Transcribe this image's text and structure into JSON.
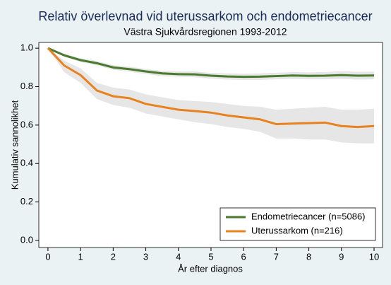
{
  "chart_data": {
    "type": "line",
    "title": "Relativ överlevnad vid uterussarkom och endometriecancer",
    "subtitle": "Västra Sjukvårdsregionen 1993-2012",
    "x_label": "År efter diagnos",
    "y_label": "Kumulativ sannolikhet",
    "x": [
      0,
      0.5,
      1,
      1.5,
      2,
      2.5,
      3,
      3.5,
      4,
      4.5,
      5,
      5.5,
      6,
      6.5,
      7,
      7.5,
      8,
      8.5,
      9,
      9.5,
      10
    ],
    "series": [
      {
        "name": "Endometriecancer (n=5086)",
        "color": "#4a7a2e",
        "values": [
          1.0,
          0.963,
          0.938,
          0.922,
          0.9,
          0.891,
          0.879,
          0.869,
          0.865,
          0.864,
          0.857,
          0.853,
          0.851,
          0.852,
          0.855,
          0.858,
          0.856,
          0.857,
          0.86,
          0.857,
          0.858
        ],
        "lower": [
          1.0,
          0.955,
          0.928,
          0.911,
          0.888,
          0.878,
          0.866,
          0.855,
          0.851,
          0.849,
          0.842,
          0.837,
          0.835,
          0.835,
          0.838,
          0.84,
          0.838,
          0.838,
          0.84,
          0.837,
          0.838
        ],
        "upper": [
          1.0,
          0.971,
          0.948,
          0.933,
          0.912,
          0.904,
          0.892,
          0.883,
          0.879,
          0.879,
          0.872,
          0.869,
          0.867,
          0.869,
          0.872,
          0.876,
          0.874,
          0.876,
          0.88,
          0.877,
          0.878
        ]
      },
      {
        "name": "Uterussarkom (n=216)",
        "color": "#e8821e",
        "values": [
          1.0,
          0.91,
          0.86,
          0.78,
          0.75,
          0.74,
          0.71,
          0.695,
          0.68,
          0.673,
          0.665,
          0.65,
          0.64,
          0.63,
          0.605,
          0.608,
          0.61,
          0.613,
          0.595,
          0.59,
          0.595
        ],
        "lower": [
          1.0,
          0.875,
          0.82,
          0.735,
          0.705,
          0.69,
          0.66,
          0.645,
          0.63,
          0.615,
          0.605,
          0.59,
          0.58,
          0.565,
          0.53,
          0.53,
          0.525,
          0.525,
          0.51,
          0.505,
          0.505
        ],
        "upper": [
          1.0,
          0.935,
          0.895,
          0.82,
          0.795,
          0.785,
          0.76,
          0.745,
          0.73,
          0.725,
          0.72,
          0.71,
          0.7,
          0.695,
          0.68,
          0.685,
          0.69,
          0.695,
          0.68,
          0.68,
          0.685
        ]
      }
    ],
    "xlim": [
      -0.28,
      10.26
    ],
    "ylim": [
      -0.037,
      1.03
    ],
    "xticks": [
      0,
      1,
      2,
      3,
      4,
      5,
      6,
      7,
      8,
      9,
      10
    ],
    "yticks": [
      {
        "value": 0,
        "label": "0.0"
      },
      0.2,
      0.4,
      0.6,
      0.8,
      {
        "value": 1,
        "label": "1.0"
      }
    ],
    "band_color": "#e6e6e6",
    "grid": false,
    "legend": "lower right"
  }
}
